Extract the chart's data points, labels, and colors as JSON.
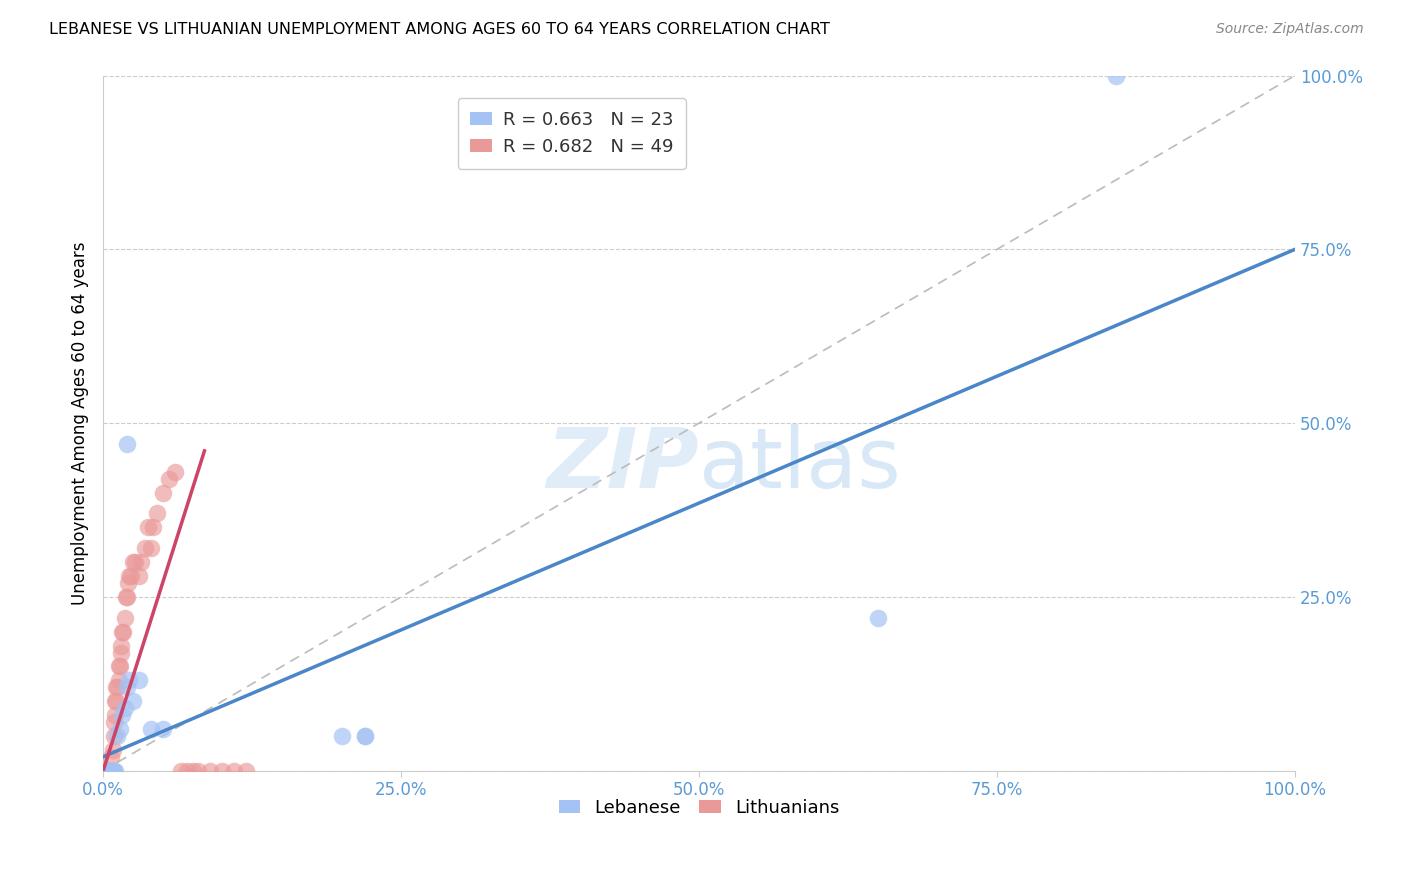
{
  "title": "LEBANESE VS LITHUANIAN UNEMPLOYMENT AMONG AGES 60 TO 64 YEARS CORRELATION CHART",
  "source": "Source: ZipAtlas.com",
  "ylabel": "Unemployment Among Ages 60 to 64 years",
  "xlim": [
    0,
    1.0
  ],
  "ylim": [
    0,
    1.0
  ],
  "legend_r_lebanese": "R = 0.663",
  "legend_n_lebanese": "N = 23",
  "legend_r_lithuanians": "R = 0.682",
  "legend_n_lithuanians": "N = 49",
  "lebanese_color": "#a4c2f4",
  "lithuanians_color": "#ea9999",
  "lebanese_line_color": "#4a86c8",
  "lithuanians_line_color": "#cc4466",
  "diagonal_color": "#bbbbbb",
  "leb_line_x0": 0.0,
  "leb_line_y0": 0.02,
  "leb_line_x1": 1.0,
  "leb_line_y1": 0.75,
  "lit_line_x0": 0.0,
  "lit_line_y0": 0.0,
  "lit_line_x1": 0.085,
  "lit_line_y1": 0.46,
  "lebanese_points_x": [
    0.003,
    0.004,
    0.005,
    0.007,
    0.008,
    0.009,
    0.01,
    0.012,
    0.014,
    0.016,
    0.018,
    0.02,
    0.022,
    0.025,
    0.03,
    0.04,
    0.05,
    0.02,
    0.2,
    0.22,
    0.22,
    0.65,
    0.85
  ],
  "lebanese_points_y": [
    0.0,
    0.0,
    0.0,
    0.0,
    0.0,
    0.0,
    0.0,
    0.05,
    0.06,
    0.08,
    0.09,
    0.12,
    0.13,
    0.1,
    0.13,
    0.06,
    0.06,
    0.47,
    0.05,
    0.05,
    0.05,
    0.22,
    1.0
  ],
  "lithuanians_points_x": [
    0.002,
    0.003,
    0.004,
    0.005,
    0.006,
    0.007,
    0.007,
    0.008,
    0.008,
    0.009,
    0.009,
    0.01,
    0.01,
    0.011,
    0.011,
    0.012,
    0.013,
    0.013,
    0.014,
    0.015,
    0.015,
    0.016,
    0.017,
    0.018,
    0.019,
    0.02,
    0.021,
    0.022,
    0.023,
    0.025,
    0.027,
    0.03,
    0.032,
    0.035,
    0.038,
    0.04,
    0.042,
    0.045,
    0.05,
    0.055,
    0.06,
    0.065,
    0.07,
    0.075,
    0.08,
    0.09,
    0.1,
    0.11,
    0.12
  ],
  "lithuanians_points_y": [
    0.0,
    0.0,
    0.0,
    0.0,
    0.0,
    0.0,
    0.02,
    0.0,
    0.03,
    0.05,
    0.07,
    0.08,
    0.1,
    0.1,
    0.12,
    0.12,
    0.13,
    0.15,
    0.15,
    0.17,
    0.18,
    0.2,
    0.2,
    0.22,
    0.25,
    0.25,
    0.27,
    0.28,
    0.28,
    0.3,
    0.3,
    0.28,
    0.3,
    0.32,
    0.35,
    0.32,
    0.35,
    0.37,
    0.4,
    0.42,
    0.43,
    0.0,
    0.0,
    0.0,
    0.0,
    0.0,
    0.0,
    0.0,
    0.0
  ]
}
